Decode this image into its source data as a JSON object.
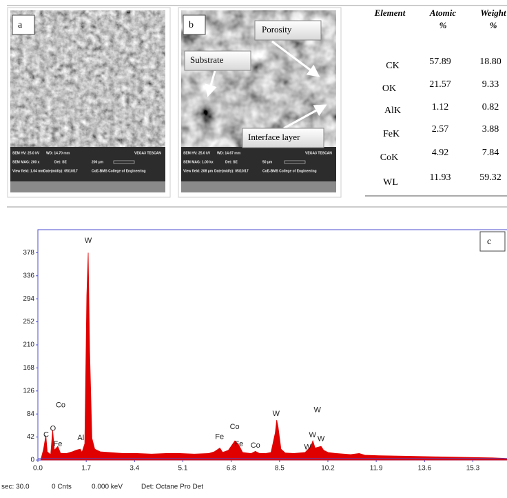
{
  "panels": [
    {
      "label": "a",
      "info": [
        [
          "SEM HV: 25.0 kV",
          "WD: 14.70 mm",
          "VEGA3 TESCAN"
        ],
        [
          "SEM MAG: 200 x",
          "Det: SE",
          "200 µm"
        ],
        [
          "View field: 1.04 mm",
          "Date(m/d/y): 05/10/17",
          "CoE-BMS College of Engineering"
        ]
      ]
    },
    {
      "label": "b",
      "info": [
        [
          "SEM HV: 25.0 kV",
          "WD: 14.67 mm",
          "VEGA3 TESCAN"
        ],
        [
          "SEM MAG: 1.00 kx",
          "Det: SE",
          "50 µm"
        ],
        [
          "View field: 208 µm",
          "Date(m/d/y): 05/10/17",
          "CoE-BMS College of Engineering"
        ]
      ],
      "callouts": [
        "Porosity",
        "Substrate",
        "Interface layer"
      ]
    }
  ],
  "table": {
    "header": [
      "Element",
      [
        "Atomic",
        "%"
      ],
      [
        "Weight",
        "%"
      ]
    ],
    "rows": [
      [
        "CK",
        "57.89",
        "18.80"
      ],
      [
        "OK",
        "21.57",
        "9.33"
      ],
      [
        "AlK",
        "1.12",
        "0.82"
      ],
      [
        "FeK",
        "2.57",
        "3.88"
      ],
      [
        "CoK",
        "4.92",
        "7.84"
      ],
      [
        "WL",
        "11.93",
        "59.32"
      ]
    ]
  },
  "chart_data": {
    "type": "area",
    "panel_label": "c",
    "color": "#e00000",
    "x": [
      0.1,
      0.2,
      0.28,
      0.33,
      0.45,
      0.52,
      0.58,
      0.7,
      0.8,
      1.0,
      1.2,
      1.35,
      1.49,
      1.55,
      1.65,
      1.72,
      1.77,
      1.82,
      1.9,
      2.0,
      2.2,
      2.5,
      3.0,
      3.5,
      4.0,
      4.5,
      5.0,
      5.5,
      6.0,
      6.2,
      6.4,
      6.5,
      6.7,
      6.93,
      7.06,
      7.2,
      7.5,
      7.65,
      7.8,
      8.0,
      8.2,
      8.35,
      8.4,
      8.45,
      8.55,
      8.7,
      9.0,
      9.4,
      9.6,
      9.67,
      9.75,
      9.96,
      10.05,
      10.2,
      10.5,
      11.0,
      11.3,
      11.5,
      12.0,
      13.0,
      14.0,
      15.0,
      16.0,
      16.5
    ],
    "values": [
      0,
      20,
      45,
      15,
      10,
      55,
      18,
      25,
      12,
      12,
      15,
      18,
      20,
      14,
      30,
      300,
      378,
      200,
      40,
      20,
      15,
      14,
      12,
      12,
      11,
      12,
      12,
      11,
      12,
      15,
      22,
      14,
      18,
      35,
      28,
      14,
      12,
      16,
      12,
      12,
      14,
      50,
      73,
      60,
      20,
      13,
      12,
      14,
      25,
      35,
      22,
      25,
      18,
      14,
      12,
      10,
      12,
      9,
      8,
      7,
      6,
      5,
      4,
      3
    ],
    "xlim": [
      0,
      16.5
    ],
    "ylim": [
      0,
      420
    ],
    "xticks": [
      {
        "value": 0,
        "label": "0.0"
      },
      1.7,
      3.4,
      5.1,
      6.8,
      8.5,
      10.2,
      11.9,
      13.6,
      15.3
    ],
    "yticks": [
      0,
      42,
      84,
      126,
      168,
      210,
      252,
      294,
      336,
      378
    ],
    "annotations": [
      {
        "text": "W",
        "x": 1.77,
        "y": 400
      },
      {
        "text": "Co",
        "x": 0.8,
        "y": 100
      },
      {
        "text": "O",
        "x": 0.53,
        "y": 57
      },
      {
        "text": "C",
        "x": 0.29,
        "y": 46
      },
      {
        "text": "Fe",
        "x": 0.7,
        "y": 29
      },
      {
        "text": "Al",
        "x": 1.51,
        "y": 40
      },
      {
        "text": "Fe",
        "x": 6.39,
        "y": 42
      },
      {
        "text": "Co",
        "x": 6.92,
        "y": 60
      },
      {
        "text": "Fe",
        "x": 7.07,
        "y": 29
      },
      {
        "text": "Co",
        "x": 7.65,
        "y": 26
      },
      {
        "text": "W",
        "x": 8.38,
        "y": 84
      },
      {
        "text": "W",
        "x": 9.83,
        "y": 91
      },
      {
        "text": "W",
        "x": 9.66,
        "y": 45
      },
      {
        "text": "W",
        "x": 9.96,
        "y": 38
      },
      {
        "text": "W",
        "x": 9.49,
        "y": 23
      }
    ],
    "status": [
      "sec: 30.0",
      "0 Cnts",
      "0.000 keV",
      "Det: Octane Pro Det"
    ]
  }
}
